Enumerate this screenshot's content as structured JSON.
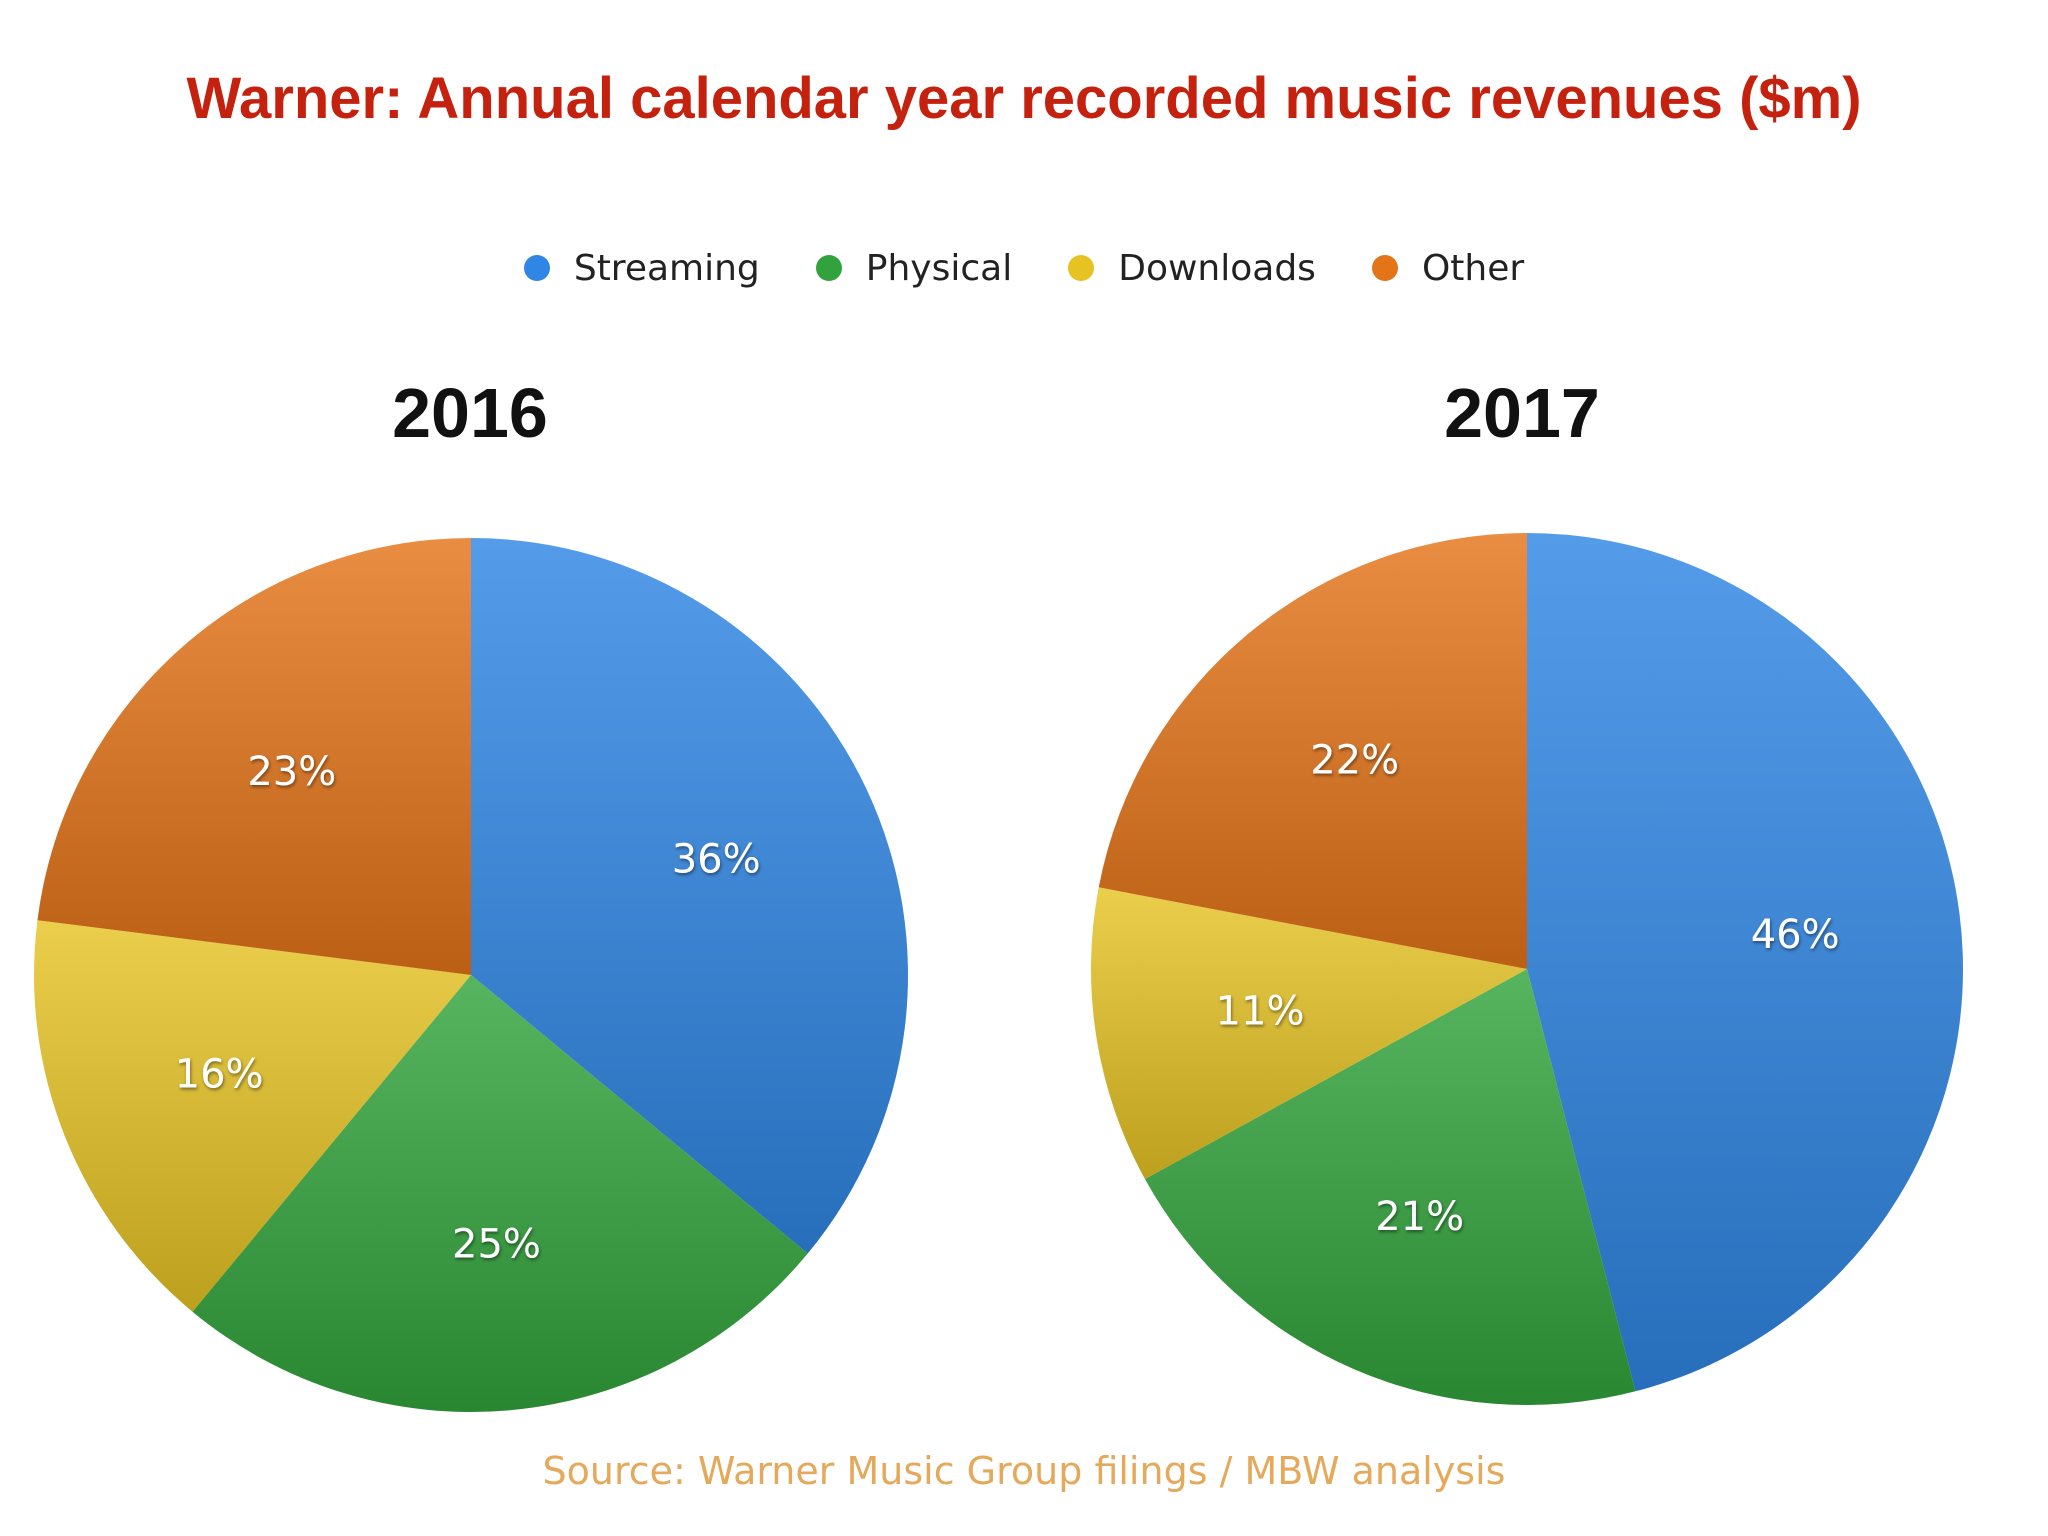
{
  "chart_data": {
    "type": "pie",
    "title": "Warner: Annual calendar year recorded music revenues ($m)",
    "categories": [
      "Streaming",
      "Physical",
      "Downloads",
      "Other"
    ],
    "colors": {
      "Streaming": "#2f86e4",
      "Physical": "#32a33c",
      "Downloads": "#e6c323",
      "Other": "#e47418"
    },
    "legend": {
      "placement": "top-center",
      "items": [
        {
          "label": "Streaming",
          "color": "#2f86e4"
        },
        {
          "label": "Physical",
          "color": "#32a33c"
        },
        {
          "label": "Downloads",
          "color": "#e6c323"
        },
        {
          "label": "Other",
          "color": "#e47418"
        }
      ]
    },
    "series": [
      {
        "name": "2016",
        "values": [
          36,
          25,
          16,
          23
        ],
        "labels": [
          "36%",
          "25%",
          "16%",
          "23%"
        ]
      },
      {
        "name": "2017",
        "values": [
          46,
          21,
          11,
          22
        ],
        "labels": [
          "46%",
          "21%",
          "11%",
          "22%"
        ]
      }
    ],
    "source": "Source: Warner Music Group filings / MBW analysis"
  }
}
